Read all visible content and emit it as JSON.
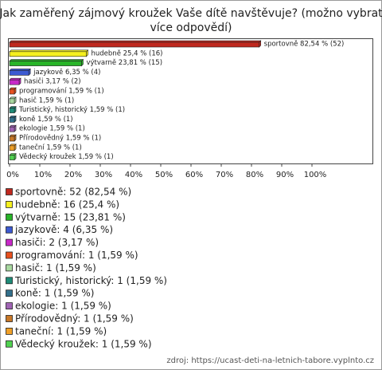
{
  "chart_data": {
    "type": "bar",
    "orientation": "horizontal",
    "title": [
      "Jak zaměřený zájmový kroužek Vaše dítě navštěvuje? (možno vybrat",
      "více odpovědí)"
    ],
    "categories": [
      "sportovně",
      "hudebně",
      "výtvarně",
      "jazykově",
      "hasiči",
      "programování",
      "hasič",
      "Turistický, historický",
      "koně",
      "ekologie",
      "Přírodovědný",
      "taneční",
      "Vědecký kroužek"
    ],
    "values": [
      82.54,
      25.4,
      23.81,
      6.35,
      3.17,
      1.59,
      1.59,
      1.59,
      1.59,
      1.59,
      1.59,
      1.59,
      1.59
    ],
    "value_labels": [
      "sportovně 82,54 % (52)",
      "hudebně 25,4 % (16)",
      "výtvarně 23,81 % (15)",
      "jazykově 6,35 % (4)",
      "hasiči 3,17 % (2)",
      "programování 1,59 % (1)",
      "hasič 1,59 % (1)",
      "Turistický, historický 1,59 % (1)",
      "koně 1,59 % (1)",
      "ekologie 1,59 % (1)",
      "Přírodovědný 1,59 % (1)",
      "taneční 1,59 % (1)",
      "Vědecký kroužek 1,59 % (1)"
    ],
    "legend_labels": [
      "sportovně: 52 (82,54 %)",
      "hudebně: 16 (25,4 %)",
      "výtvarně: 15 (23,81 %)",
      "jazykově: 4 (6,35 %)",
      "hasiči: 2 (3,17 %)",
      "programování: 1 (1,59 %)",
      "hasič: 1 (1,59 %)",
      "Turistický, historický: 1 (1,59 %)",
      "koně: 1 (1,59 %)",
      "ekologie: 1 (1,59 %)",
      "Přírodovědný: 1 (1,59 %)",
      "taneční: 1 (1,59 %)",
      "Vědecký kroužek: 1 (1,59 %)"
    ],
    "colors": [
      "#c0281e",
      "#f5f01e",
      "#28b428",
      "#3c5ad2",
      "#c828c8",
      "#e8501e",
      "#a8d8a0",
      "#1e8c78",
      "#32708c",
      "#a064b4",
      "#c87828",
      "#f0a028",
      "#50d250"
    ],
    "xlim": [
      0,
      120
    ],
    "xticks": [
      {
        "value": 0,
        "label": "0%"
      },
      {
        "value": 10,
        "label": "10%"
      },
      {
        "value": 20,
        "label": "20%"
      },
      {
        "value": 30,
        "label": "30%"
      },
      {
        "value": 40,
        "label": "40%"
      },
      {
        "value": 50,
        "label": "50%"
      },
      {
        "value": 60,
        "label": "60%"
      },
      {
        "value": 70,
        "label": "70%"
      },
      {
        "value": 80,
        "label": "80%"
      },
      {
        "value": 90,
        "label": "90%"
      },
      {
        "value": 100,
        "label": "100%"
      }
    ],
    "source": "zdroj: https://ucast-deti-na-letnich-tabore.vyplnto.cz"
  }
}
